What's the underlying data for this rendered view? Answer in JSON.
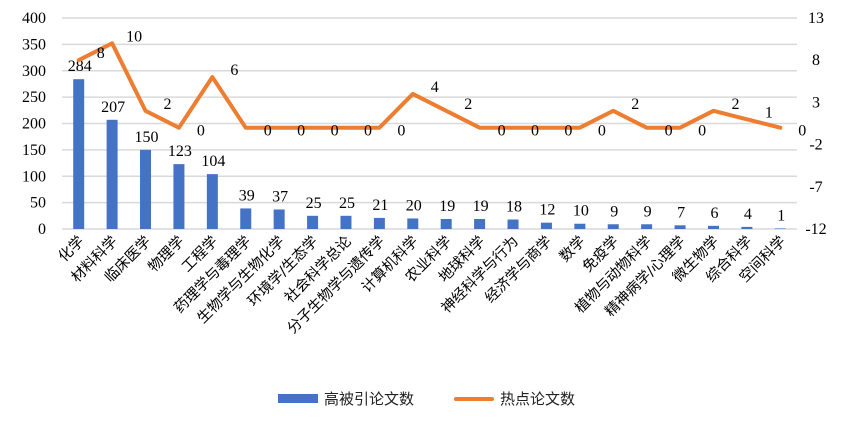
{
  "chart_data": {
    "type": "bar+line",
    "title": "",
    "categories": [
      "化学",
      "材料科学",
      "临床医学",
      "物理学",
      "工程学",
      "药理学与毒理学",
      "生物学与生物化学",
      "环境学/生态学",
      "社会科学总论",
      "分子生物学与遗传学",
      "计算机科学",
      "农业科学",
      "地球科学",
      "神经科学与行为",
      "经济学与商学",
      "数学",
      "免疫学",
      "植物与动物科学",
      "精神病学/心理学",
      "微生物学",
      "综合科学",
      "空间科学"
    ],
    "series": [
      {
        "name": "高被引论文数",
        "type": "bar",
        "axis": "left",
        "color": "#4472C4",
        "values": [
          284,
          207,
          150,
          123,
          104,
          39,
          37,
          25,
          25,
          21,
          20,
          19,
          19,
          18,
          12,
          10,
          9,
          9,
          7,
          6,
          4,
          1
        ]
      },
      {
        "name": "热点论文数",
        "type": "line",
        "axis": "right",
        "color": "#ED7D31",
        "values": [
          8,
          10,
          2,
          0,
          6,
          0,
          0,
          0,
          0,
          0,
          4,
          2,
          0,
          0,
          0,
          0,
          2,
          0,
          0,
          2,
          1,
          0
        ]
      }
    ],
    "left_axis": {
      "ylim": [
        0,
        400
      ],
      "ticks": [
        0,
        50,
        100,
        150,
        200,
        250,
        300,
        350,
        400
      ]
    },
    "right_axis": {
      "ylim": [
        -12,
        13
      ],
      "ticks": [
        -12,
        -7,
        -2,
        3,
        8,
        13
      ]
    },
    "xlabel": "",
    "ylabel": "",
    "grid": true,
    "legend_position": "bottom"
  },
  "legend": {
    "bar_label": "高被引论文数",
    "line_label": "热点论文数"
  }
}
